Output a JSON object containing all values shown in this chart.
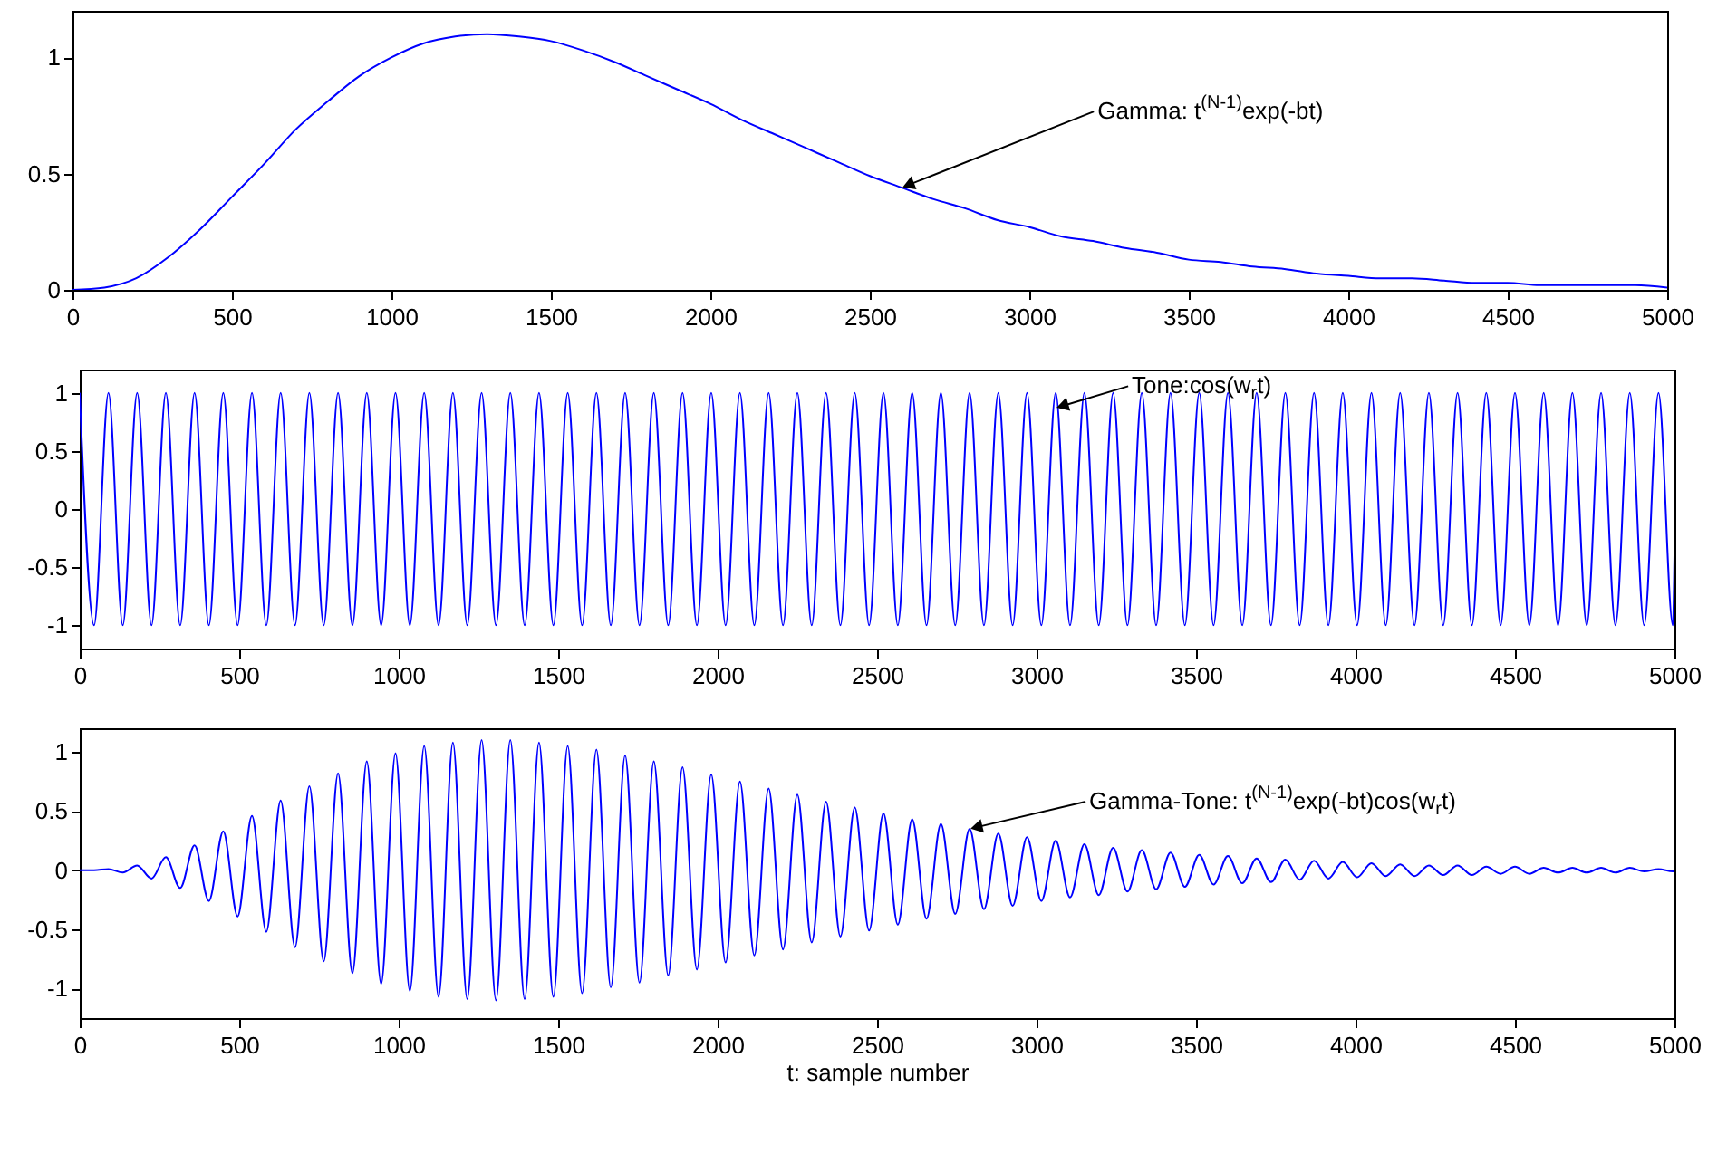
{
  "chart_data": [
    {
      "type": "line",
      "xlim": [
        0,
        5000
      ],
      "ylim": [
        0,
        1.2
      ],
      "xticks": [
        0,
        500,
        1000,
        1500,
        2000,
        2500,
        3000,
        3500,
        4000,
        4500,
        5000
      ],
      "yticks": [
        0,
        0.5,
        1
      ],
      "annotations": [
        {
          "text": "Gamma: t$^{(N-1)}$exp(-bt)",
          "x": 2600,
          "y": 0.44
        }
      ],
      "x": [
        0,
        100,
        200,
        300,
        400,
        500,
        600,
        700,
        800,
        900,
        1000,
        1100,
        1200,
        1300,
        1400,
        1500,
        1600,
        1700,
        1800,
        1900,
        2000,
        2100,
        2200,
        2300,
        2400,
        2500,
        2600,
        2700,
        2800,
        2900,
        3000,
        3100,
        3200,
        3300,
        3400,
        3500,
        3600,
        3700,
        3800,
        3900,
        4000,
        4100,
        4200,
        4300,
        4400,
        4500,
        4600,
        4700,
        4800,
        4900,
        5000
      ],
      "series": [
        {
          "color": "#0000ff",
          "values": [
            0,
            0.01,
            0.05,
            0.14,
            0.26,
            0.4,
            0.54,
            0.69,
            0.81,
            0.92,
            1.0,
            1.06,
            1.09,
            1.1,
            1.09,
            1.07,
            1.03,
            0.98,
            0.92,
            0.86,
            0.8,
            0.73,
            0.67,
            0.61,
            0.55,
            0.49,
            0.44,
            0.39,
            0.35,
            0.3,
            0.27,
            0.23,
            0.21,
            0.18,
            0.16,
            0.13,
            0.12,
            0.1,
            0.09,
            0.07,
            0.06,
            0.05,
            0.05,
            0.04,
            0.03,
            0.03,
            0.02,
            0.02,
            0.02,
            0.02,
            0.01
          ]
        }
      ]
    },
    {
      "type": "line",
      "xlim": [
        0,
        5000
      ],
      "ylim": [
        -1.2,
        1.2
      ],
      "xticks": [
        0,
        500,
        1000,
        1500,
        2000,
        2500,
        3000,
        3500,
        4000,
        4500,
        5000
      ],
      "yticks": [
        -1,
        -0.5,
        0,
        0.5,
        1
      ],
      "annotations": [
        {
          "text": "Tone:cos(w$_{r}$t)",
          "x": 3060,
          "y": 0.87
        }
      ],
      "x": [
        0,
        45,
        90,
        135,
        180,
        225,
        270,
        315,
        360,
        405,
        450,
        495,
        540,
        585,
        630,
        675,
        720,
        765,
        810,
        855,
        900,
        945,
        990,
        1035,
        1080,
        1125,
        1170,
        1215,
        1260,
        1305,
        1350,
        1395,
        1440,
        1485,
        1530,
        1575,
        1620,
        1665,
        1710,
        1755,
        1800,
        1845,
        1890,
        1935,
        1980,
        2025,
        2070,
        2115,
        2160,
        2205,
        2250,
        2295,
        2340,
        2385,
        2430,
        2475,
        2520,
        2565,
        2610,
        2655,
        2700,
        2745,
        2790,
        2835,
        2880,
        2925,
        2970,
        3015,
        3060,
        3105,
        3150,
        3195,
        3240,
        3285,
        3330,
        3375,
        3420,
        3465,
        3510,
        3555,
        3600,
        3645,
        3690,
        3735,
        3780,
        3825,
        3870,
        3915,
        3960,
        4005,
        4050,
        4095,
        4140,
        4185,
        4230,
        4275,
        4320,
        4365,
        4410,
        4455,
        4500,
        4545,
        4590,
        4635,
        4680,
        4725,
        4770,
        4815,
        4860,
        4905,
        4950,
        4995,
        5000
      ],
      "series": [
        {
          "color": "#0000ff",
          "values": [
            1,
            -1,
            1,
            -1,
            1,
            -1,
            1,
            -1,
            1,
            -1,
            1,
            -1,
            1,
            -1,
            1,
            -1,
            1,
            -1,
            1,
            -1,
            1,
            -1,
            1,
            -1,
            1,
            -1,
            1,
            -1,
            1,
            -1,
            1,
            -1,
            1,
            -1,
            1,
            -1,
            1,
            -1,
            1,
            -1,
            1,
            -1,
            1,
            -1,
            1,
            -1,
            1,
            -1,
            1,
            -1,
            1,
            -1,
            1,
            -1,
            1,
            -1,
            1,
            -1,
            1,
            -1,
            1,
            -1,
            1,
            -1,
            1,
            -1,
            1,
            -1,
            1,
            -1,
            1,
            -1,
            1,
            -1,
            1,
            -1,
            1,
            -1,
            1,
            -1,
            1,
            -1,
            1,
            -1,
            1,
            -1,
            1,
            -1,
            1,
            -1,
            1,
            -1,
            1,
            -1,
            1,
            -1,
            1,
            -1,
            1,
            -1,
            1,
            -1,
            1,
            -1,
            1,
            -1,
            1,
            -1,
            1,
            -1,
            1,
            -1,
            -0.4
          ]
        }
      ]
    },
    {
      "type": "line",
      "xlim": [
        0,
        5000
      ],
      "ylim": [
        -1.25,
        1.2
      ],
      "xticks": [
        0,
        500,
        1000,
        1500,
        2000,
        2500,
        3000,
        3500,
        4000,
        4500,
        5000
      ],
      "yticks": [
        -1,
        -0.5,
        0,
        0.5,
        1
      ],
      "xlabel": "t: sample number",
      "annotations": [
        {
          "text": "Gamma-Tone: t$^{(N-1)}$exp(-bt)cos(w$_{r}$t)",
          "x": 2790,
          "y": 0.35
        }
      ],
      "x": [
        0,
        45,
        90,
        135,
        180,
        225,
        270,
        315,
        360,
        405,
        450,
        495,
        540,
        585,
        630,
        675,
        720,
        765,
        810,
        855,
        900,
        945,
        990,
        1035,
        1080,
        1125,
        1170,
        1215,
        1260,
        1305,
        1350,
        1395,
        1440,
        1485,
        1530,
        1575,
        1620,
        1665,
        1710,
        1755,
        1800,
        1845,
        1890,
        1935,
        1980,
        2025,
        2070,
        2115,
        2160,
        2205,
        2250,
        2295,
        2340,
        2385,
        2430,
        2475,
        2520,
        2565,
        2610,
        2655,
        2700,
        2745,
        2790,
        2835,
        2880,
        2925,
        2970,
        3015,
        3060,
        3105,
        3150,
        3195,
        3240,
        3285,
        3330,
        3375,
        3420,
        3465,
        3510,
        3555,
        3600,
        3645,
        3690,
        3735,
        3780,
        3825,
        3870,
        3915,
        3960,
        4005,
        4050,
        4095,
        4140,
        4185,
        4230,
        4275,
        4320,
        4365,
        4410,
        4455,
        4500,
        4545,
        4590,
        4635,
        4680,
        4725,
        4770,
        4815,
        4860,
        4905,
        4950,
        4995,
        5000
      ],
      "series": [
        {
          "color": "#0000ff",
          "values": [
            0,
            0,
            0.01,
            -0.02,
            0.04,
            -0.07,
            0.11,
            -0.15,
            0.21,
            -0.26,
            0.33,
            -0.39,
            0.46,
            -0.52,
            0.59,
            -0.65,
            0.71,
            -0.77,
            0.82,
            -0.87,
            0.92,
            -0.96,
            0.99,
            -1.02,
            1.05,
            -1.07,
            1.08,
            -1.09,
            1.1,
            -1.1,
            1.1,
            -1.09,
            1.08,
            -1.07,
            1.05,
            -1.04,
            1.02,
            -0.99,
            0.97,
            -0.95,
            0.92,
            -0.89,
            0.87,
            -0.84,
            0.81,
            -0.78,
            0.75,
            -0.72,
            0.69,
            -0.67,
            0.64,
            -0.61,
            0.58,
            -0.56,
            0.53,
            -0.51,
            0.48,
            -0.46,
            0.43,
            -0.41,
            0.39,
            -0.37,
            0.35,
            -0.33,
            0.31,
            -0.3,
            0.28,
            -0.26,
            0.25,
            -0.23,
            0.22,
            -0.21,
            0.19,
            -0.18,
            0.17,
            -0.16,
            0.15,
            -0.14,
            0.13,
            -0.12,
            0.12,
            -0.11,
            0.1,
            -0.1,
            0.09,
            -0.08,
            0.08,
            -0.07,
            0.07,
            -0.06,
            0.06,
            -0.05,
            0.05,
            -0.05,
            0.04,
            -0.04,
            0.04,
            -0.04,
            0.03,
            -0.03,
            0.03,
            -0.03,
            0.02,
            -0.02,
            0.02,
            -0.02,
            0.02,
            -0.02,
            0.02,
            -0.01,
            0.01,
            -0.01,
            -0.01
          ]
        }
      ]
    }
  ]
}
